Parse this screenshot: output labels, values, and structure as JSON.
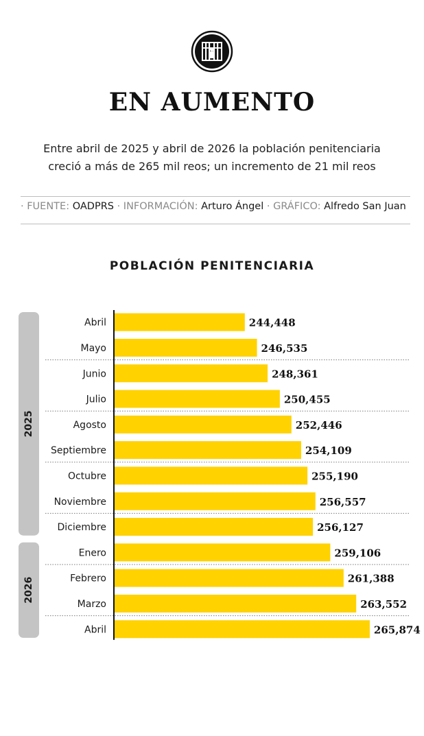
{
  "header": {
    "title": "EN AUMENTO",
    "subtitle_line1": "Entre abril de 2025 y abril de 2026 la población penitenciaria",
    "subtitle_line2": "creció a más de 265 mil reos; un incremento de 21 mil reos"
  },
  "credits": {
    "fuente_label": "FUENTE:",
    "fuente_value": "OADPRS",
    "informacion_label": "INFORMACIÓN:",
    "informacion_value": "Arturo Ángel",
    "grafico_label": "GRÁFICO:",
    "grafico_value": "Alfredo San Juan"
  },
  "chart_data": {
    "type": "bar",
    "orientation": "horizontal",
    "title": "POBLACIÓN PENITENCIARIA",
    "categories": [
      "Abril",
      "Mayo",
      "Junio",
      "Julio",
      "Agosto",
      "Septiembre",
      "Octubre",
      "Noviembre",
      "Diciembre",
      "Enero",
      "Febrero",
      "Marzo",
      "Abril"
    ],
    "values": [
      244448,
      246535,
      248361,
      250455,
      252446,
      254109,
      255190,
      256557,
      256127,
      259106,
      261388,
      263552,
      265874
    ],
    "value_labels": [
      "244,448",
      "246,535",
      "248,361",
      "250,455",
      "252,446",
      "254,109",
      "255,190",
      "256,557",
      "256,127",
      "259,106",
      "261,388",
      "263,552",
      "265,874"
    ],
    "groups": [
      {
        "label": "2025",
        "start": 0,
        "count": 9
      },
      {
        "label": "2026",
        "start": 9,
        "count": 4
      }
    ],
    "bar_color": "#FFD200",
    "group_color": "#C4C4C4"
  }
}
